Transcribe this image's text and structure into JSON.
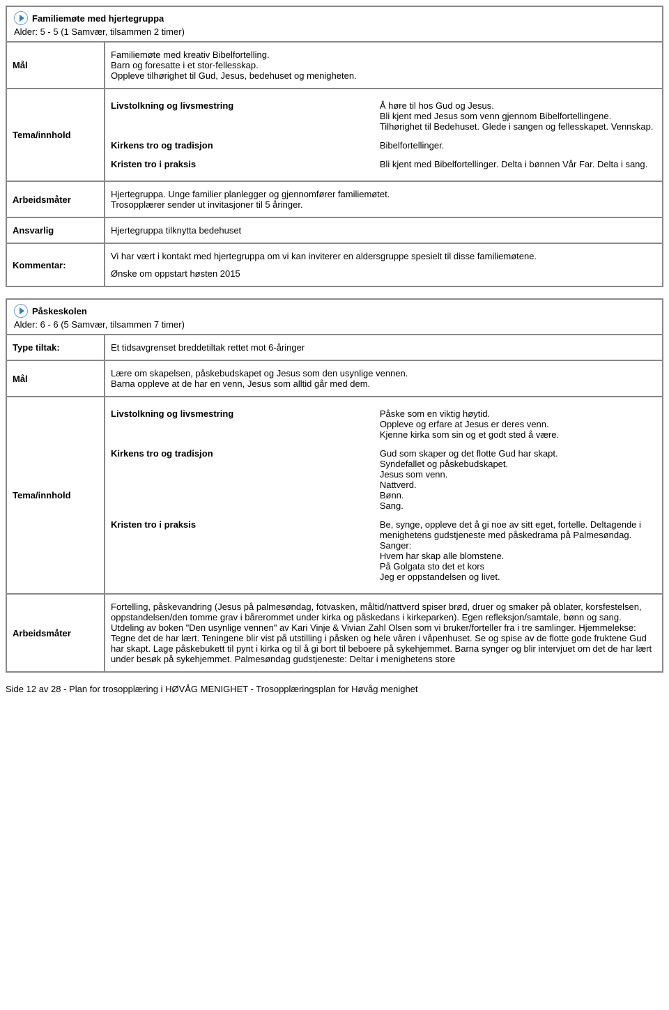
{
  "section1": {
    "title": "Familiemøte med hjertegruppa",
    "subtitle": "Alder: 5 - 5 (1 Samvær, tilsammen 2 timer)",
    "rows": {
      "mal": {
        "label": "Mål",
        "text": "Familiemøte med kreativ Bibelfortelling.\nBarn og foresatte i et stor-fellesskap.\nOppleve tilhørighet til Gud, Jesus, bedehuset og menigheten."
      },
      "tema": {
        "label": "Tema/innhold",
        "pairs": [
          {
            "left": "Livstolkning og livsmestring",
            "right": "Å høre til hos Gud og Jesus.\nBli kjent med Jesus som venn gjennom Bibelfortellingene.\nTilhørighet til Bedehuset. Glede i sangen og fellesskapet. Vennskap."
          },
          {
            "left": "Kirkens tro og tradisjon",
            "right": "Bibelfortellinger."
          },
          {
            "left": "Kristen tro i praksis",
            "right": "Bli kjent med Bibelfortellinger. Delta i bønnen Vår Far. Delta i sang."
          }
        ]
      },
      "arbeidsmater": {
        "label": "Arbeidsmåter",
        "text": "Hjertegruppa. Unge familier planlegger og gjennomfører familiemøtet.\nTrosopplærer sender ut invitasjoner til 5 åringer."
      },
      "ansvarlig": {
        "label": "Ansvarlig",
        "text": "Hjertegruppa tilknytta bedehuset"
      },
      "kommentar": {
        "label": "Kommentar:",
        "text1": "Vi har vært i kontakt med hjertegruppa om vi kan inviterer en aldersgruppe spesielt til disse familiemøtene.",
        "text2": "Ønske om oppstart høsten 2015"
      }
    }
  },
  "section2": {
    "title": "Påskeskolen",
    "subtitle": "Alder: 6 - 6 (5 Samvær, tilsammen 7 timer)",
    "rows": {
      "type": {
        "label": "Type tiltak:",
        "text": "Et tidsavgrenset breddetiltak rettet mot 6-åringer"
      },
      "mal": {
        "label": "Mål",
        "text": "Lære om skapelsen, påskebudskapet og Jesus som den usynlige vennen.\nBarna oppleve at de har en venn, Jesus som alltid går med dem."
      },
      "tema": {
        "label": "Tema/innhold",
        "pairs": [
          {
            "left": "Livstolkning og livsmestring",
            "right": "Påske som en viktig høytid.\nOppleve og erfare at Jesus er deres venn.\nKjenne kirka som sin og et godt sted å være."
          },
          {
            "left": "Kirkens tro og tradisjon",
            "right": "Gud som skaper og det flotte Gud har skapt.\nSyndefallet og påskebudskapet.\nJesus som venn.\nNattverd.\nBønn.\nSang."
          },
          {
            "left": "Kristen tro i praksis",
            "right": "Be, synge, oppleve det å gi noe av sitt eget, fortelle. Deltagende i menighetens gudstjeneste med påskedrama på Palmesøndag.\nSanger:\nHvem har skap alle blomstene.\nPå Golgata sto det et kors\nJeg er oppstandelsen og livet."
          }
        ]
      },
      "arbeidsmater": {
        "label": "Arbeidsmåter",
        "text": "Fortelling, påskevandring (Jesus på palmesøndag, fotvasken, måltid/nattverd spiser brød, druer og smaker på oblater, korsfestelsen, oppstandelsen/den tomme grav i bårerommet under kirka og påskedans i kirkeparken). Egen refleksjon/samtale, bønn og sang. Utdeling av boken \"Den usynlige vennen\" av Kari Vinje & Vivian Zahl Olsen som vi bruker/forteller fra i tre samlinger. Hjemmelekse: Tegne det de har lært. Teningene blir vist på utstilling i påsken og hele våren i våpenhuset. Se og spise av de flotte gode fruktene Gud har skapt. Lage påskebukett til pynt i kirka og til å gi bort til beboere på sykehjemmet. Barna synger og blir intervjuet om det de har lært under besøk på sykehjemmet. Palmesøndag gudstjeneste: Deltar i menighetens store"
      }
    }
  },
  "footer": "Side 12 av 28 - Plan for trosopplæring i HØVÅG MENIGHET - Trosopplæringsplan for Høvåg menighet"
}
